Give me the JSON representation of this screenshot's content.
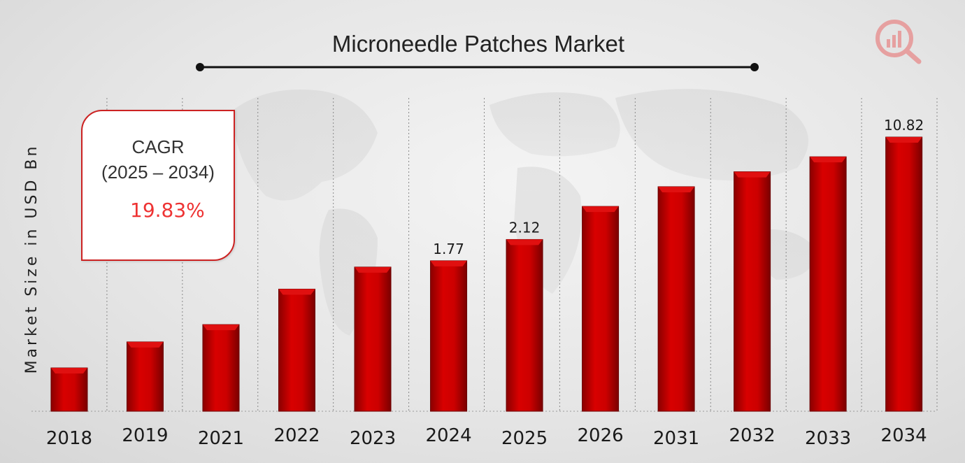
{
  "chart_data": {
    "type": "bar",
    "title": "Microneedle Patches Market",
    "ylabel": "Market Size in USD Bn",
    "xlabel": "",
    "categories": [
      "2018",
      "2019",
      "2021",
      "2022",
      "2023",
      "2024",
      "2025",
      "2026",
      "2031",
      "2032",
      "2033",
      "2034"
    ],
    "values": [
      0.55,
      0.88,
      1.1,
      1.55,
      1.83,
      1.77,
      2.12,
      2.55,
      2.75,
      2.95,
      3.15,
      10.82
    ],
    "plotted_heights": [
      0.55,
      0.88,
      1.1,
      1.55,
      1.83,
      1.91,
      2.18,
      2.6,
      2.85,
      3.04,
      3.23,
      3.48
    ],
    "data_labels": {
      "2024": "1.77",
      "2025": "2.12",
      "2034": "10.82"
    },
    "bar_color": "#cc0000",
    "grid": "vertical dotted",
    "legend": "none"
  },
  "cagr": {
    "title": "CAGR",
    "period": "(2025 – 2034)",
    "value": "19.83%"
  },
  "logo": {
    "icon": "bar-chart-magnifier-icon",
    "color": "#e8a0a0"
  }
}
